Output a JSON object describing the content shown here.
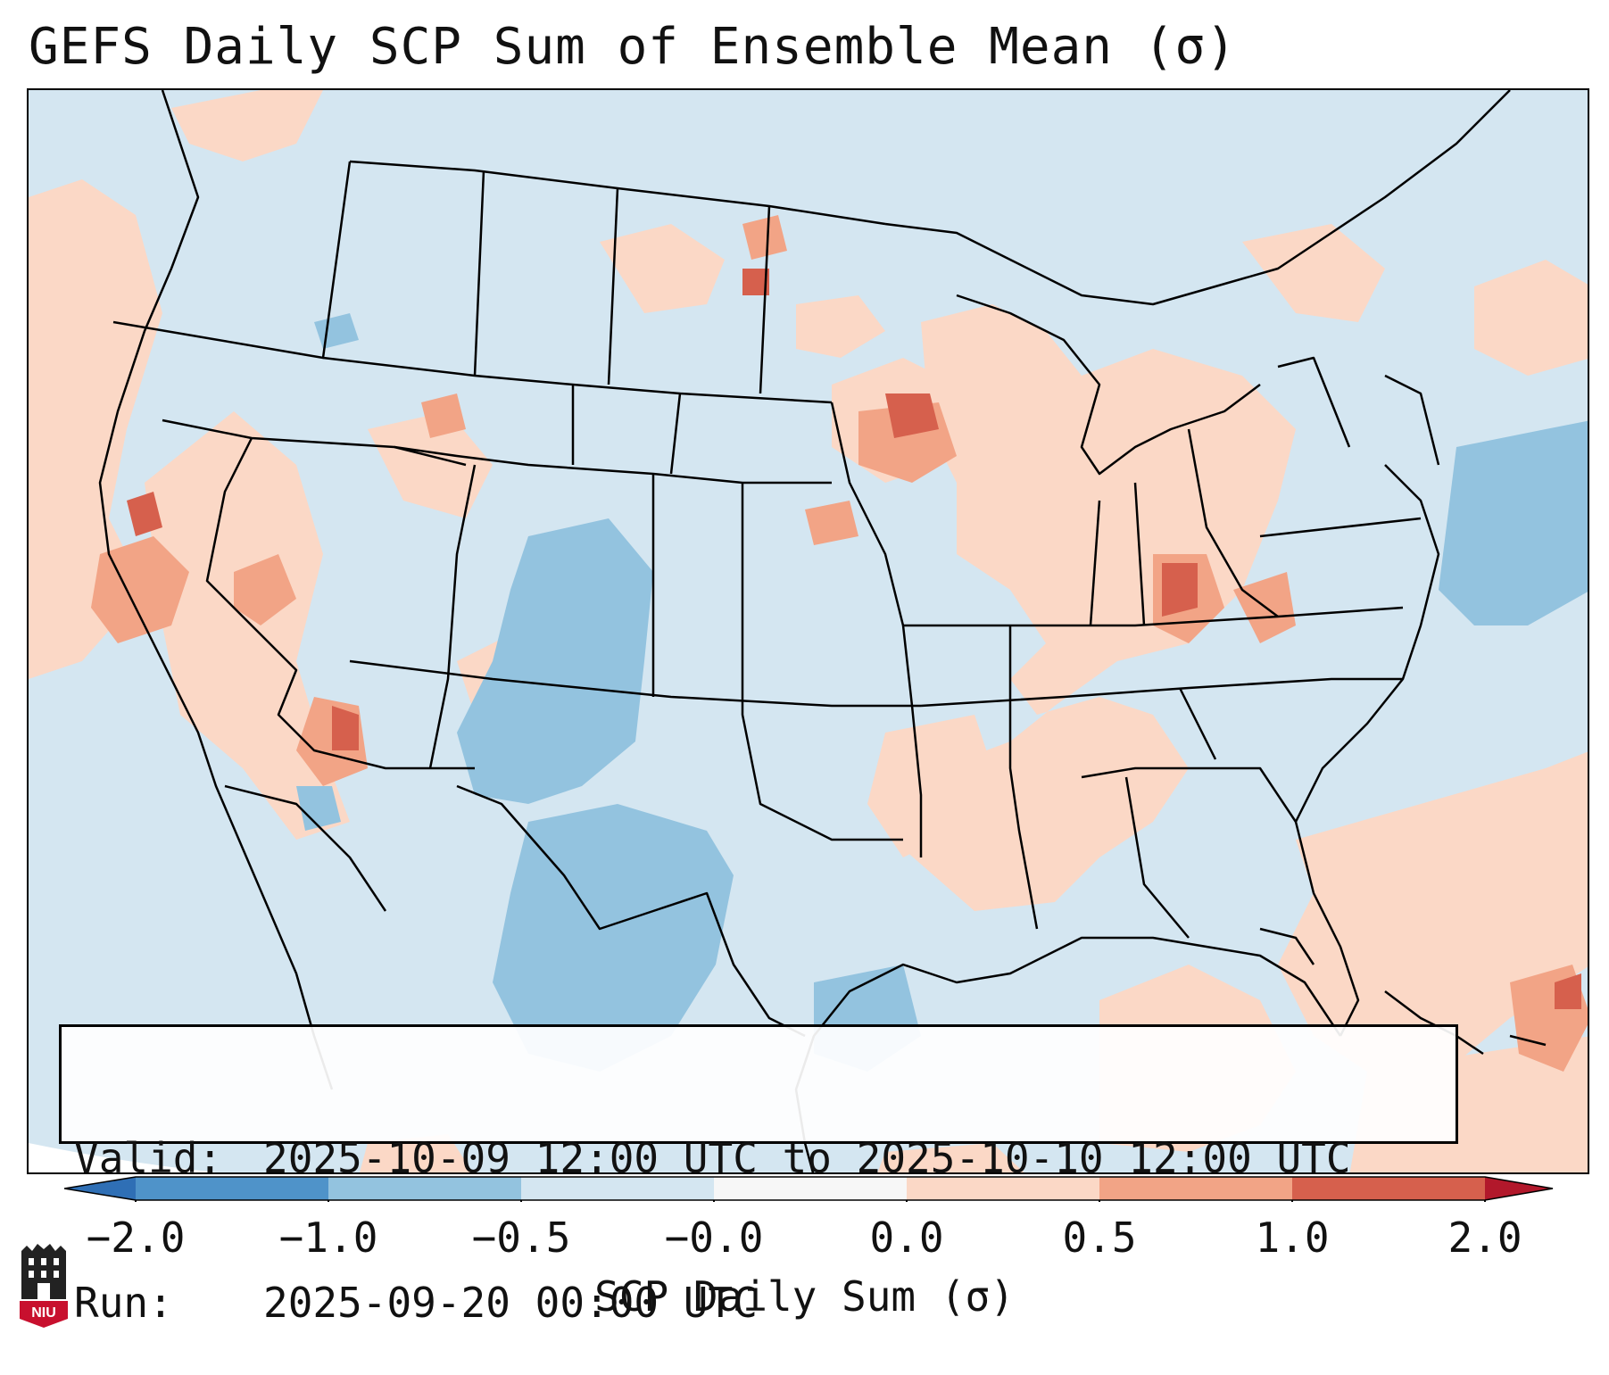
{
  "figure": {
    "title": "GEFS Daily SCP Sum of Ensemble Mean (σ)",
    "valid_label": "Valid:",
    "valid_value": "2025-10-09 12:00 UTC to 2025-10-10 12:00 UTC",
    "run_label": "Run:",
    "run_value": "2025-09-20 00:00 UTC"
  },
  "colorbar": {
    "title": "SCP Daily Sum (σ)",
    "ticks": [
      "−2.0",
      "−1.0",
      "−0.5",
      "−0.0",
      "0.0",
      "0.5",
      "1.0",
      "2.0"
    ],
    "colors": {
      "extend_low": "#2f6fb5",
      "below_m2": "#4a8ac4",
      "m2_to_m1": "#4f93c9",
      "m1_to_m05": "#93c3df",
      "m05_to_m0": "#d4e6f1",
      "m0_to_0": "#f7f7f7",
      "p0_to_05": "#fbd8c6",
      "p05_to_1": "#f2a486",
      "p1_to_2": "#d6604d",
      "extend_high": "#b2182b"
    }
  },
  "map": {
    "region": "Contiguous United States",
    "background_color": "#d4e6f1",
    "positive_light": "#fbd8c6",
    "positive_mid": "#f2a486",
    "positive_strong": "#d6604d",
    "negative_mid": "#93c3df"
  },
  "logo": {
    "text": "NIU",
    "color": "#c8102e"
  }
}
